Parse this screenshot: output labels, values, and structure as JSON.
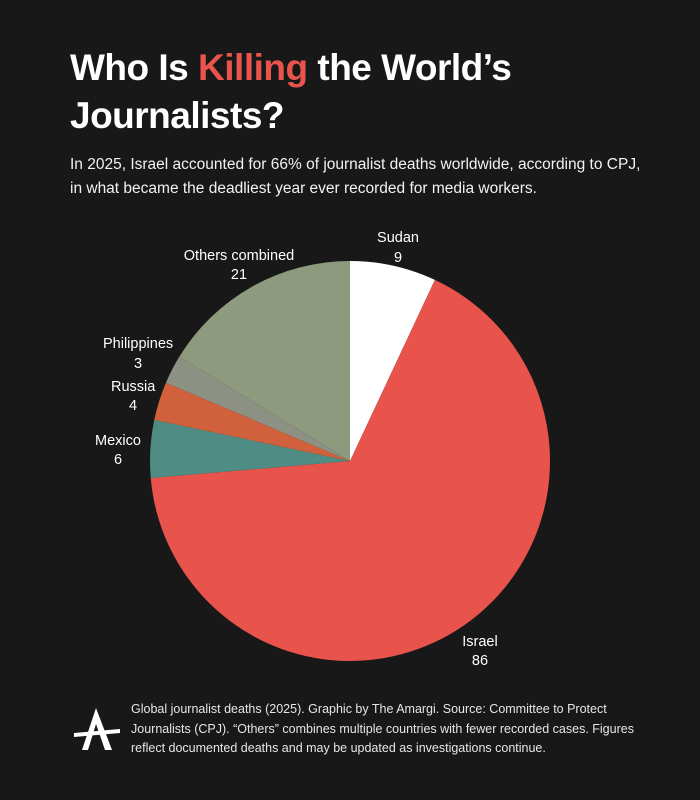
{
  "header": {
    "title_pre": "Who Is ",
    "title_highlight": "Killing",
    "title_post": " the World’s Journalists?",
    "subtitle": "In 2025, Israel accounted for 66% of journalist deaths worldwide, according to CPJ, in what became the deadliest year ever recorded for media workers.",
    "highlight_color": "#e8534c"
  },
  "chart_data": {
    "type": "pie",
    "start": "12 o'clock, clockwise",
    "slices": [
      {
        "label": "Sudan",
        "value": 9,
        "color": "#ffffff"
      },
      {
        "label": "Israel",
        "value": 86,
        "color": "#e8534c"
      },
      {
        "label": "Mexico",
        "value": 6,
        "color": "#4f8d84"
      },
      {
        "label": "Russia",
        "value": 4,
        "color": "#d0613c"
      },
      {
        "label": "Philippines",
        "value": 3,
        "color": "#8d9184"
      },
      {
        "label": "Others combined",
        "value": 21,
        "color": "#8e9a7d"
      }
    ],
    "legend": "none (direct labels)"
  },
  "footer": {
    "logo_icon": "amargi-logo-icon",
    "note": "Global journalist deaths (2025). Graphic by The Amargi. Source: Committee to Protect Journalists (CPJ). “Others” combines multiple countries with fewer recorded cases. Figures reflect documented deaths and may be updated as investigations continue."
  }
}
